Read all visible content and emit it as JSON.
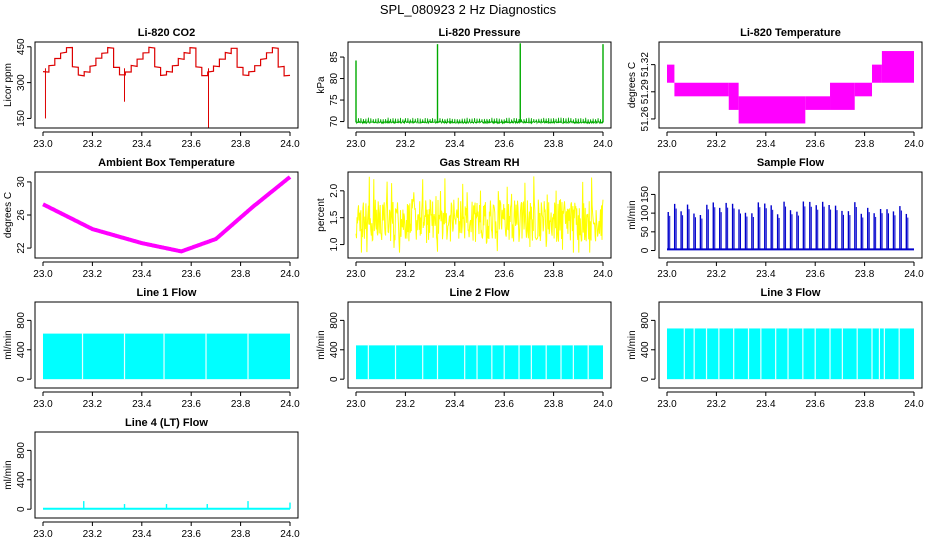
{
  "figure_title": "SPL_080923  2 Hz Diagnostics",
  "chart_data": [
    {
      "id": "p1",
      "type": "line",
      "title": "Li-820 CO2",
      "ylabel": "Licor ppm",
      "color": "#dd0000",
      "x_ticks": [
        "23.0",
        "23.2",
        "23.4",
        "23.6",
        "23.8",
        "24.0"
      ],
      "xlim": [
        23.0,
        24.0
      ],
      "ylim": [
        110,
        470
      ],
      "y_ticks": [
        150,
        300,
        450
      ],
      "y_tick_labels": [
        "150",
        "300",
        "450"
      ],
      "series": {
        "description": "step pattern cycling through sample lines, approx 330-450 ppm",
        "low": 330,
        "high": 445,
        "spikes": [
          {
            "x": 23.01,
            "y": 150
          },
          {
            "x": 23.33,
            "y": 220
          },
          {
            "x": 23.67,
            "y": 105
          }
        ]
      }
    },
    {
      "id": "p2",
      "type": "line",
      "title": "Li-820 Pressure",
      "ylabel": "kPa",
      "color": "#00aa00",
      "x_ticks": [
        "23.0",
        "23.2",
        "23.4",
        "23.6",
        "23.8",
        "24.0"
      ],
      "xlim": [
        23.0,
        24.0
      ],
      "ylim": [
        68.5,
        88.5
      ],
      "y_ticks": [
        70,
        75,
        80,
        85
      ],
      "y_tick_labels": [
        "70",
        "75",
        "80",
        "85"
      ],
      "series": {
        "baseline": 69.8,
        "noise": 0.9,
        "spikes": [
          {
            "x": 23.0,
            "y": 84.2
          },
          {
            "x": 23.33,
            "y": 88.0
          },
          {
            "x": 23.665,
            "y": 88.2
          },
          {
            "x": 24.0,
            "y": 88.0
          }
        ]
      }
    },
    {
      "id": "p3",
      "type": "area",
      "title": "Li-820 Temperature",
      "ylabel": "degrees C",
      "color": "#ff00ff",
      "x_ticks": [
        "23.0",
        "23.2",
        "23.4",
        "23.6",
        "23.8",
        "24.0"
      ],
      "xlim": [
        23.0,
        24.0
      ],
      "ylim": [
        51.25,
        51.345
      ],
      "y_ticks": [
        51.26,
        51.29,
        51.32
      ],
      "y_tick_labels": [
        "51.26",
        "51.29",
        "51.32"
      ],
      "segments": [
        {
          "x0": 23.0,
          "x1": 23.03,
          "lo": 51.3,
          "hi": 51.32
        },
        {
          "x0": 23.03,
          "x1": 23.25,
          "lo": 51.285,
          "hi": 51.3
        },
        {
          "x0": 23.25,
          "x1": 23.29,
          "lo": 51.27,
          "hi": 51.3
        },
        {
          "x0": 23.29,
          "x1": 23.56,
          "lo": 51.255,
          "hi": 51.285
        },
        {
          "x0": 23.56,
          "x1": 23.66,
          "lo": 51.27,
          "hi": 51.285
        },
        {
          "x0": 23.66,
          "x1": 23.76,
          "lo": 51.27,
          "hi": 51.3
        },
        {
          "x0": 23.76,
          "x1": 23.83,
          "lo": 51.285,
          "hi": 51.3
        },
        {
          "x0": 23.83,
          "x1": 23.87,
          "lo": 51.3,
          "hi": 51.32
        },
        {
          "x0": 23.87,
          "x1": 24.0,
          "lo": 51.3,
          "hi": 51.335
        }
      ]
    },
    {
      "id": "p4",
      "type": "line",
      "title": "Ambient Box Temperature",
      "ylabel": "degrees C",
      "color": "#ff00ff",
      "x_ticks": [
        "23.0",
        "23.2",
        "23.4",
        "23.6",
        "23.8",
        "24.0"
      ],
      "xlim": [
        23.0,
        24.0
      ],
      "ylim": [
        20.8,
        31.2
      ],
      "y_ticks": [
        22,
        26,
        30
      ],
      "y_tick_labels": [
        "22",
        "26",
        "30"
      ],
      "curve": [
        [
          23.0,
          27.3
        ],
        [
          23.2,
          24.3
        ],
        [
          23.4,
          22.6
        ],
        [
          23.56,
          21.6
        ],
        [
          23.7,
          23.1
        ],
        [
          23.85,
          27.0
        ],
        [
          24.0,
          30.6
        ]
      ]
    },
    {
      "id": "p5",
      "type": "line",
      "title": "Gas Stream RH",
      "ylabel": "percent",
      "color": "#ffff00",
      "x_ticks": [
        "23.0",
        "23.2",
        "23.4",
        "23.6",
        "23.8",
        "24.0"
      ],
      "xlim": [
        23.0,
        24.0
      ],
      "ylim": [
        0.75,
        2.35
      ],
      "y_ticks": [
        1.0,
        1.5,
        2.0
      ],
      "y_tick_labels": [
        "1.0",
        "1.5",
        "2.0"
      ],
      "series": {
        "center": 1.45,
        "amplitude": 0.4,
        "peak": 2.3,
        "trough": 0.85
      }
    },
    {
      "id": "p6",
      "type": "line",
      "title": "Sample Flow",
      "ylabel": "ml/min",
      "color": "#0000cc",
      "x_ticks": [
        "23.0",
        "23.2",
        "23.4",
        "23.6",
        "23.8",
        "24.0"
      ],
      "xlim": [
        23.0,
        24.0
      ],
      "ylim": [
        -20,
        210
      ],
      "y_ticks": [
        0,
        50,
        100,
        150
      ],
      "y_tick_labels": [
        "0",
        "50",
        "100",
        "150"
      ],
      "series": {
        "baseline": 3,
        "pulse_height": 125,
        "pulses": 38
      }
    },
    {
      "id": "p7",
      "type": "area",
      "title": "Line 1 Flow",
      "ylabel": "ml/min",
      "color": "#00ffff",
      "x_ticks": [
        "23.0",
        "23.2",
        "23.4",
        "23.6",
        "23.8",
        "24.0"
      ],
      "xlim": [
        23.0,
        24.0
      ],
      "ylim": [
        -120,
        1050
      ],
      "y_ticks": [
        0,
        400,
        800
      ],
      "y_tick_labels": [
        "0",
        "400",
        "800"
      ],
      "level": 620,
      "gaps": [
        23.16,
        23.33,
        23.49,
        23.66,
        23.83
      ]
    },
    {
      "id": "p8",
      "type": "area",
      "title": "Line 2 Flow",
      "ylabel": "ml/min",
      "color": "#00ffff",
      "x_ticks": [
        "23.0",
        "23.2",
        "23.4",
        "23.6",
        "23.8",
        "24.0"
      ],
      "xlim": [
        23.0,
        24.0
      ],
      "ylim": [
        -120,
        1050
      ],
      "y_ticks": [
        0,
        400,
        800
      ],
      "y_tick_labels": [
        "0",
        "400",
        "800"
      ],
      "level": 460,
      "gaps": [
        23.05,
        23.16,
        23.27,
        23.33,
        23.44,
        23.49,
        23.55,
        23.6,
        23.66,
        23.71,
        23.77,
        23.83,
        23.88,
        23.94
      ]
    },
    {
      "id": "p9",
      "type": "area",
      "title": "Line 3 Flow",
      "ylabel": "ml/min",
      "color": "#00ffff",
      "x_ticks": [
        "23.0",
        "23.2",
        "23.4",
        "23.6",
        "23.8",
        "24.0"
      ],
      "xlim": [
        23.0,
        24.0
      ],
      "ylim": [
        -120,
        1050
      ],
      "y_ticks": [
        0,
        400,
        800
      ],
      "y_tick_labels": [
        "0",
        "400",
        "800"
      ],
      "level": 690,
      "gaps": [
        23.07,
        23.11,
        23.16,
        23.21,
        23.27,
        23.33,
        23.38,
        23.44,
        23.49,
        23.55,
        23.6,
        23.66,
        23.71,
        23.77,
        23.83,
        23.86,
        23.88,
        23.94
      ]
    },
    {
      "id": "p10",
      "type": "line",
      "title": "Line 4 (LT) Flow",
      "ylabel": "ml/min",
      "color": "#00ffff",
      "x_ticks": [
        "23.0",
        "23.2",
        "23.4",
        "23.6",
        "23.8",
        "24.0"
      ],
      "xlim": [
        23.0,
        24.0
      ],
      "ylim": [
        -120,
        1050
      ],
      "y_ticks": [
        0,
        400,
        800
      ],
      "y_tick_labels": [
        "0",
        "400",
        "800"
      ],
      "level": 5,
      "spikes": [
        {
          "x": 23.165,
          "y": 110
        },
        {
          "x": 23.33,
          "y": 70
        },
        {
          "x": 23.5,
          "y": 70
        },
        {
          "x": 23.665,
          "y": 70
        },
        {
          "x": 23.83,
          "y": 110
        },
        {
          "x": 24.0,
          "y": 90
        }
      ]
    }
  ]
}
